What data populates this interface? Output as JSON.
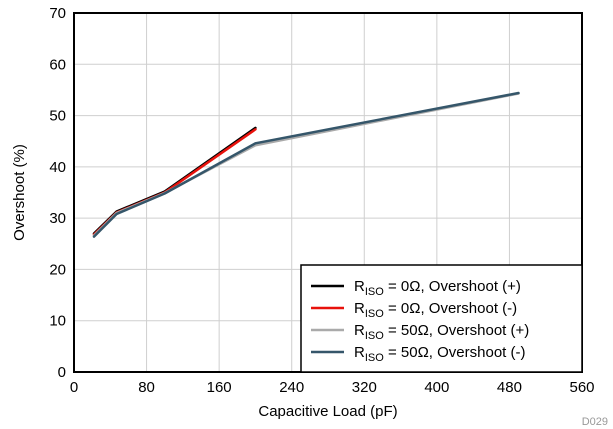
{
  "chart_data": {
    "type": "line",
    "xlabel": "Capacitive Load (pF)",
    "ylabel": "Overshoot (%)",
    "xlim": [
      0,
      560
    ],
    "ylim": [
      0,
      70
    ],
    "xticks": [
      "0",
      "80",
      "160",
      "240",
      "320",
      "400",
      "480",
      "560"
    ],
    "yticks": [
      "0",
      "10",
      "20",
      "30",
      "40",
      "50",
      "60",
      "70"
    ],
    "grid": true,
    "legend_position": "bottom-right",
    "series": [
      {
        "name_main": "R",
        "name_sub": "ISO",
        "name_rest": " = 0Ω, Overshoot (+)",
        "color": "#000000",
        "points": [
          [
            22,
            27
          ],
          [
            47,
            31.3
          ],
          [
            100,
            35.2
          ],
          [
            200,
            47.6
          ]
        ]
      },
      {
        "name_main": "R",
        "name_sub": "ISO",
        "name_rest": " = 0Ω, Overshoot (-)",
        "color": "#e8120c",
        "points": [
          [
            22,
            26.8
          ],
          [
            47,
            31.1
          ],
          [
            100,
            35
          ],
          [
            200,
            47.3
          ]
        ]
      },
      {
        "name_main": "R",
        "name_sub": "ISO",
        "name_rest": " = 50Ω, Overshoot (+)",
        "color": "#aaaaaa",
        "points": [
          [
            22,
            26.6
          ],
          [
            47,
            31
          ],
          [
            100,
            34.9
          ],
          [
            200,
            44.2
          ],
          [
            490,
            54.3
          ]
        ]
      },
      {
        "name_main": "R",
        "name_sub": "ISO",
        "name_rest": " = 50Ω, Overshoot (-)",
        "color": "#35566a",
        "points": [
          [
            22,
            26.4
          ],
          [
            47,
            30.8
          ],
          [
            100,
            34.8
          ],
          [
            200,
            44.6
          ],
          [
            490,
            54.4
          ]
        ]
      }
    ],
    "footer": "D029"
  }
}
